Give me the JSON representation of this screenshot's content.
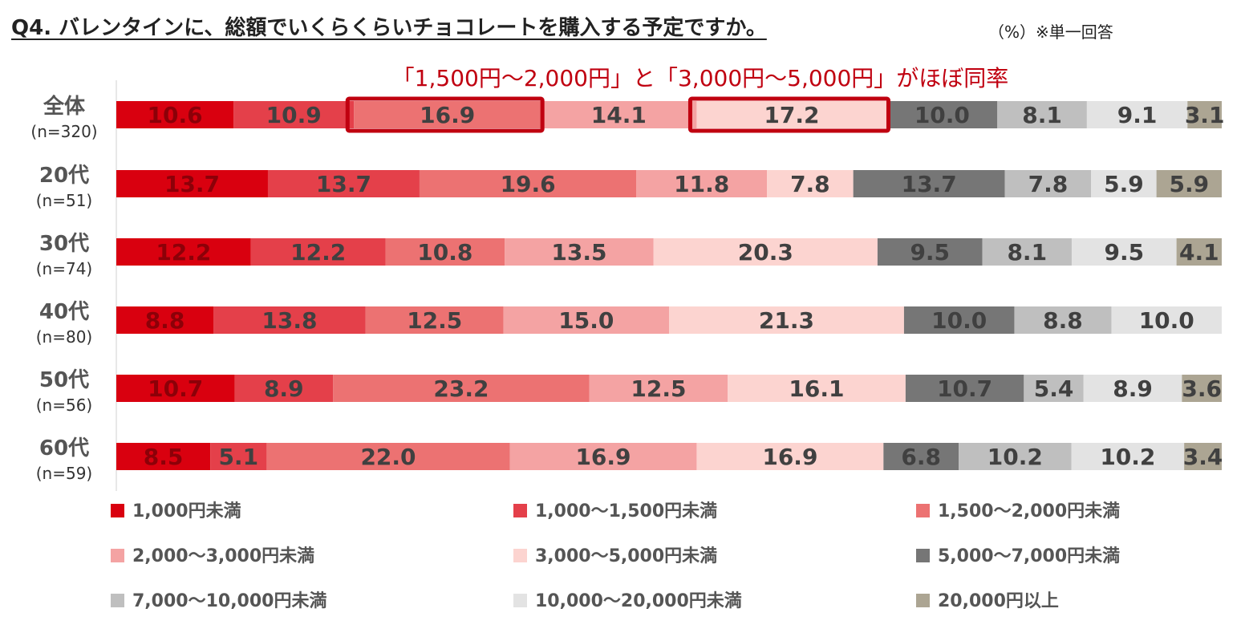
{
  "title": "Q4. バレンタインに、総額でいくらくらいチョコレートを購入する予定ですか。",
  "unit_note": "（%）※単一回答",
  "chart_data": {
    "type": "bar",
    "orientation": "horizontal",
    "stacked": "100%",
    "title": "Q4. バレンタインに、総額でいくらくらいチョコレートを購入する予定ですか。",
    "annotation": "「1,500円～2,000円」と「3,000円～5,000円」がほぼ同率",
    "highlighted_segments": [
      {
        "category": "全体",
        "series": "1,500～2,000円未満"
      },
      {
        "category": "全体",
        "series": "3,000～5,000円未満"
      }
    ],
    "categories": [
      {
        "label": "全体",
        "n": "(n=320)"
      },
      {
        "label": "20代",
        "n": "(n=51)"
      },
      {
        "label": "30代",
        "n": "(n=74)"
      },
      {
        "label": "40代",
        "n": "(n=80)"
      },
      {
        "label": "50代",
        "n": "(n=56)"
      },
      {
        "label": "60代",
        "n": "(n=59)"
      }
    ],
    "series": [
      {
        "name": "1,000円未満",
        "color": "#d9000f",
        "text_color": "#8c0008",
        "values": [
          "10.6",
          "13.7",
          "12.2",
          "8.8",
          "10.7",
          "8.5"
        ]
      },
      {
        "name": "1,000～1,500円未満",
        "color": "#e4404a",
        "text_color": "#404040",
        "values": [
          "10.9",
          "13.7",
          "12.2",
          "13.8",
          "8.9",
          "5.1"
        ]
      },
      {
        "name": "1,500～2,000円未満",
        "color": "#ec7272",
        "text_color": "#404040",
        "values": [
          "16.9",
          "19.6",
          "10.8",
          "12.5",
          "23.2",
          "22.0"
        ]
      },
      {
        "name": "2,000～3,000円未満",
        "color": "#f4a3a3",
        "text_color": "#404040",
        "values": [
          "14.1",
          "11.8",
          "13.5",
          "15.0",
          "12.5",
          "16.9"
        ]
      },
      {
        "name": "3,000～5,000円未満",
        "color": "#fcd4d0",
        "text_color": "#404040",
        "values": [
          "17.2",
          "7.8",
          "20.3",
          "21.3",
          "16.1",
          "16.9"
        ]
      },
      {
        "name": "5,000～7,000円未満",
        "color": "#767676",
        "text_color": "#404040",
        "values": [
          "10.0",
          "13.7",
          "9.5",
          "10.0",
          "10.7",
          "6.8"
        ]
      },
      {
        "name": "7,000～10,000円未満",
        "color": "#bfbfbf",
        "text_color": "#404040",
        "values": [
          "8.1",
          "7.8",
          "8.1",
          "8.8",
          "5.4",
          "10.2"
        ]
      },
      {
        "name": "10,000～20,000円未満",
        "color": "#e3e3e3",
        "text_color": "#404040",
        "values": [
          "9.1",
          "5.9",
          "9.5",
          "10.0",
          "8.9",
          "10.2"
        ]
      },
      {
        "name": "20,000円以上",
        "color": "#aca593",
        "text_color": "#404040",
        "values": [
          "3.1",
          "5.9",
          "4.1",
          "",
          "3.6",
          "3.4"
        ]
      }
    ],
    "xlim": [
      0,
      100
    ],
    "legend_position": "bottom"
  }
}
